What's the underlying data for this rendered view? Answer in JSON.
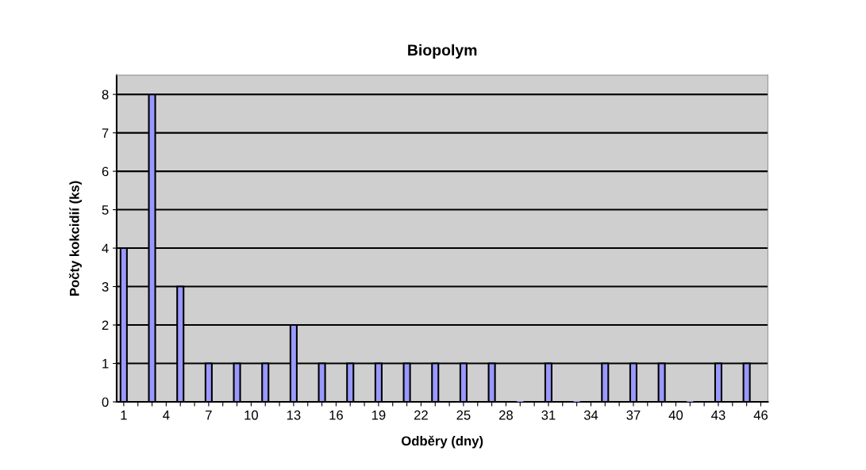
{
  "chart_data": {
    "type": "bar",
    "title": "Biopolym",
    "xlabel": "Odběry (dny)",
    "ylabel": "Počty kokcidií (ks)",
    "categories": [
      "1",
      null,
      null,
      "4",
      null,
      null,
      "7",
      null,
      null,
      "10",
      null,
      null,
      "13",
      null,
      null,
      "16",
      null,
      null,
      "19",
      null,
      null,
      "22",
      null,
      null,
      "25",
      null,
      null,
      "28",
      null,
      null,
      "31",
      null,
      null,
      "34",
      null,
      null,
      "37",
      null,
      null,
      "40",
      null,
      null,
      "43",
      null,
      null,
      "46"
    ],
    "series": [
      {
        "color": "#9999ff",
        "values": [
          4,
          null,
          8,
          null,
          3,
          null,
          1,
          null,
          1,
          null,
          1,
          null,
          2,
          null,
          1,
          null,
          1,
          null,
          1,
          null,
          1,
          null,
          1,
          null,
          1,
          null,
          1,
          null,
          0,
          null,
          1,
          null,
          0,
          null,
          1,
          null,
          1,
          null,
          1,
          null,
          0,
          null,
          1,
          null,
          1,
          null
        ]
      }
    ],
    "ylim": [
      0,
      8.5
    ],
    "yticks": [
      0,
      1,
      2,
      3,
      4,
      5,
      6,
      7,
      8
    ],
    "grid": "y",
    "legend": false
  }
}
